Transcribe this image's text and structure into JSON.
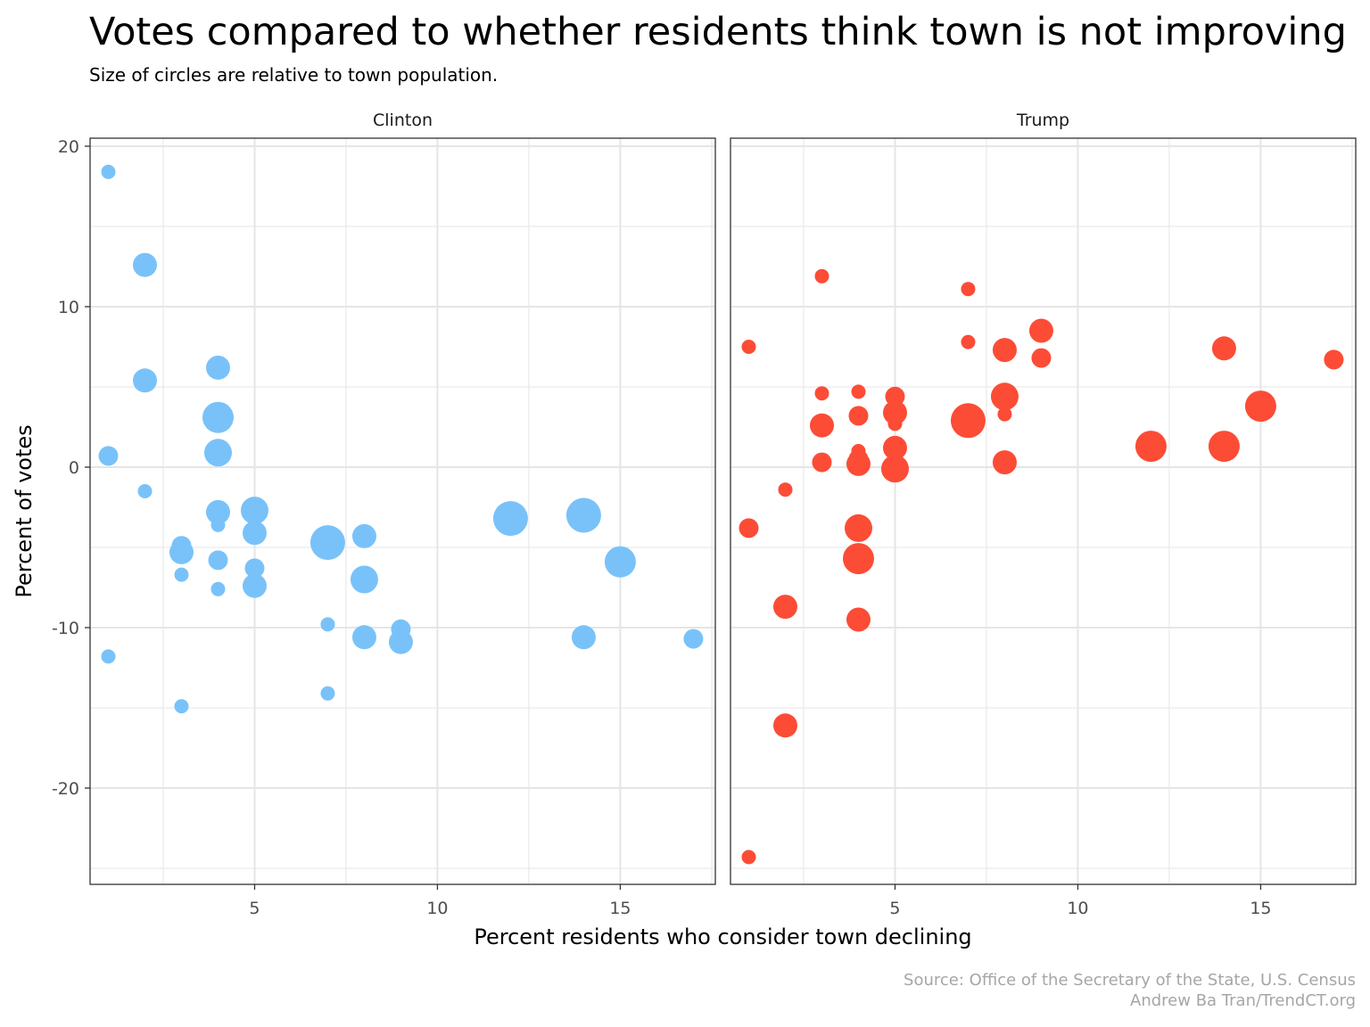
{
  "title": "Votes compared to whether residents think town is not improving",
  "subtitle": "Size of circles are relative to town population.",
  "caption": {
    "line1": "Source: Office of the Secretary of the State, U.S. Census",
    "line2": "Andrew Ba Tran/TrendCT.org"
  },
  "colors": {
    "Clinton": "#79c2f9",
    "Trump": "#fc4c36",
    "grid": "#e5e5e5",
    "axis_text": "#4d4d4d"
  },
  "chart_data": {
    "type": "scatter",
    "xlabel": "Percent residents who consider town declining",
    "ylabel": "Percent of votes",
    "xlim": [
      0.5,
      17.6
    ],
    "ylim": [
      -26,
      20.5
    ],
    "x_ticks": [
      5,
      10,
      15
    ],
    "y_ticks": [
      20,
      10,
      0,
      -10,
      -20
    ],
    "x_tick_labels": [
      "5",
      "10",
      "15"
    ],
    "y_tick_labels": [
      "20",
      "10",
      "0",
      "-10",
      "-20"
    ],
    "grid": true,
    "legend": "none",
    "size_encoding": "town population (relative)",
    "panels": [
      {
        "name": "Clinton",
        "points": [
          {
            "x": 1,
            "y": 18.4,
            "size": 1
          },
          {
            "x": 1,
            "y": 0.7,
            "size": 2
          },
          {
            "x": 1,
            "y": -11.8,
            "size": 1
          },
          {
            "x": 2,
            "y": 12.6,
            "size": 3
          },
          {
            "x": 2,
            "y": 5.4,
            "size": 3
          },
          {
            "x": 2,
            "y": -1.5,
            "size": 1
          },
          {
            "x": 3,
            "y": -4.9,
            "size": 2
          },
          {
            "x": 3,
            "y": -5.3,
            "size": 3
          },
          {
            "x": 3,
            "y": -6.7,
            "size": 1
          },
          {
            "x": 3,
            "y": -14.9,
            "size": 1
          },
          {
            "x": 4,
            "y": 6.2,
            "size": 3
          },
          {
            "x": 4,
            "y": 3.1,
            "size": 5
          },
          {
            "x": 4,
            "y": 0.9,
            "size": 4
          },
          {
            "x": 4,
            "y": -2.8,
            "size": 3
          },
          {
            "x": 4,
            "y": -3.6,
            "size": 1
          },
          {
            "x": 4,
            "y": -5.8,
            "size": 2
          },
          {
            "x": 4,
            "y": -7.6,
            "size": 1
          },
          {
            "x": 5,
            "y": -2.7,
            "size": 4
          },
          {
            "x": 5,
            "y": -4.1,
            "size": 3
          },
          {
            "x": 5,
            "y": -6.3,
            "size": 2
          },
          {
            "x": 5,
            "y": -7.4,
            "size": 3
          },
          {
            "x": 7,
            "y": -4.7,
            "size": 6
          },
          {
            "x": 7,
            "y": -9.8,
            "size": 1
          },
          {
            "x": 7,
            "y": -14.1,
            "size": 1
          },
          {
            "x": 8,
            "y": -4.3,
            "size": 3
          },
          {
            "x": 8,
            "y": -7.0,
            "size": 4
          },
          {
            "x": 8,
            "y": -10.6,
            "size": 3
          },
          {
            "x": 9,
            "y": -10.1,
            "size": 2
          },
          {
            "x": 9,
            "y": -10.9,
            "size": 3
          },
          {
            "x": 12,
            "y": -3.2,
            "size": 6
          },
          {
            "x": 14,
            "y": -3.0,
            "size": 6
          },
          {
            "x": 14,
            "y": -10.6,
            "size": 3
          },
          {
            "x": 15,
            "y": -5.9,
            "size": 5
          },
          {
            "x": 17,
            "y": -10.7,
            "size": 2
          }
        ]
      },
      {
        "name": "Trump",
        "points": [
          {
            "x": 1,
            "y": 7.5,
            "size": 1
          },
          {
            "x": 1,
            "y": -3.8,
            "size": 2
          },
          {
            "x": 1,
            "y": -24.3,
            "size": 1
          },
          {
            "x": 2,
            "y": -1.4,
            "size": 1
          },
          {
            "x": 2,
            "y": -8.7,
            "size": 3
          },
          {
            "x": 2,
            "y": -16.1,
            "size": 3
          },
          {
            "x": 3,
            "y": 11.9,
            "size": 1
          },
          {
            "x": 3,
            "y": 4.6,
            "size": 1
          },
          {
            "x": 3,
            "y": 2.6,
            "size": 3
          },
          {
            "x": 3,
            "y": 0.3,
            "size": 2
          },
          {
            "x": 4,
            "y": 4.7,
            "size": 1
          },
          {
            "x": 4,
            "y": 3.2,
            "size": 2
          },
          {
            "x": 4,
            "y": 1.0,
            "size": 1
          },
          {
            "x": 4,
            "y": 0.5,
            "size": 2
          },
          {
            "x": 4,
            "y": 0.2,
            "size": 3
          },
          {
            "x": 4,
            "y": -3.8,
            "size": 4
          },
          {
            "x": 4,
            "y": -5.7,
            "size": 5
          },
          {
            "x": 4,
            "y": -9.5,
            "size": 3
          },
          {
            "x": 5,
            "y": 4.4,
            "size": 2
          },
          {
            "x": 5,
            "y": 3.4,
            "size": 3
          },
          {
            "x": 5,
            "y": 2.7,
            "size": 1
          },
          {
            "x": 5,
            "y": 1.2,
            "size": 3
          },
          {
            "x": 5,
            "y": -0.1,
            "size": 4
          },
          {
            "x": 7,
            "y": 11.1,
            "size": 1
          },
          {
            "x": 7,
            "y": 7.8,
            "size": 1
          },
          {
            "x": 7,
            "y": 2.9,
            "size": 6
          },
          {
            "x": 8,
            "y": 7.3,
            "size": 3
          },
          {
            "x": 8,
            "y": 4.4,
            "size": 4
          },
          {
            "x": 8,
            "y": 3.3,
            "size": 1
          },
          {
            "x": 8,
            "y": 0.3,
            "size": 3
          },
          {
            "x": 9,
            "y": 8.5,
            "size": 3
          },
          {
            "x": 9,
            "y": 6.8,
            "size": 2
          },
          {
            "x": 12,
            "y": 1.3,
            "size": 5
          },
          {
            "x": 14,
            "y": 7.4,
            "size": 3
          },
          {
            "x": 14,
            "y": 1.3,
            "size": 5
          },
          {
            "x": 15,
            "y": 3.8,
            "size": 5
          },
          {
            "x": 17,
            "y": 6.7,
            "size": 2
          }
        ]
      }
    ]
  }
}
